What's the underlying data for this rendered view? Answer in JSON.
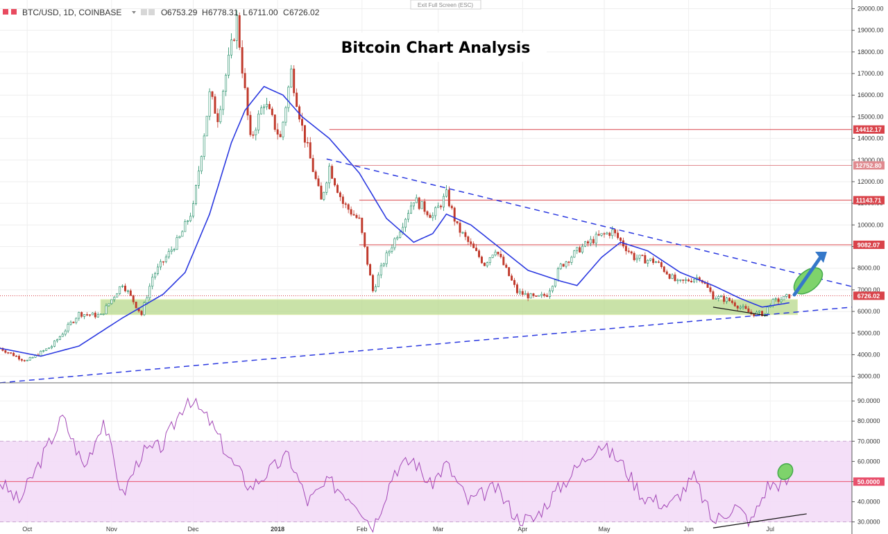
{
  "toolbar": {
    "symbol": "BTC/USD, 1D, COINBASE",
    "ohlc": [
      {
        "label": "O",
        "value": "6753.29"
      },
      {
        "label": "H",
        "value": "6778.31"
      },
      {
        "label": "L",
        "value": "6711.00"
      },
      {
        "label": "C",
        "value": "6726.02"
      }
    ],
    "exit_fullscreen": "Exit Full Screen (ESC)"
  },
  "chart_data": [
    {
      "type": "candlestick",
      "title": "Bitcoin Chart Analysis",
      "symbol": "BTC/USD, 1D, COINBASE",
      "ylim": [
        2700,
        20400
      ],
      "scale": "linear",
      "yticks": [
        3000,
        4000,
        5000,
        6000,
        7000,
        8000,
        9000,
        10000,
        11000,
        12000,
        13000,
        14000,
        15000,
        16000,
        17000,
        18000,
        19000,
        20000
      ],
      "ytick_labels": [
        "3000.00",
        "4000.00",
        "5000.00",
        "6000.00",
        "7000.00",
        "8000.00",
        "9000.00",
        "10000.00",
        "11000.00",
        "12000.00",
        "13000.00",
        "14000.00",
        "15000.00",
        "16000.00",
        "17000.00",
        "18000.00",
        "19000.00",
        "20000.00"
      ],
      "xticks": [
        "Oct",
        "Nov",
        "Dec",
        "2018",
        "Feb",
        "Mar",
        "Apr",
        "May",
        "Jun",
        "Jul"
      ],
      "xtick_dates": [
        "2017-10-01",
        "2017-11-01",
        "2017-12-01",
        "2018-01-01",
        "2018-02-01",
        "2018-03-01",
        "2018-04-01",
        "2018-05-01",
        "2018-06-01",
        "2018-07-01"
      ],
      "date_range": [
        "2017-09-21",
        "2018-07-31"
      ],
      "price_path": [
        [
          "2017-09-21",
          4300
        ],
        [
          "2017-09-29",
          3800
        ],
        [
          "2017-10-01",
          3720
        ],
        [
          "2017-10-10",
          4400
        ],
        [
          "2017-10-20",
          5900
        ],
        [
          "2017-10-28",
          5800
        ],
        [
          "2017-11-05",
          7300
        ],
        [
          "2017-11-12",
          5860
        ],
        [
          "2017-11-16",
          7600
        ],
        [
          "2017-11-26",
          9400
        ],
        [
          "2017-12-01",
          10800
        ],
        [
          "2017-12-07",
          16000
        ],
        [
          "2017-12-10",
          15000
        ],
        [
          "2017-12-17",
          19500
        ],
        [
          "2017-12-22",
          13900
        ],
        [
          "2017-12-27",
          15700
        ],
        [
          "2018-01-02",
          14000
        ],
        [
          "2018-01-06",
          17100
        ],
        [
          "2018-01-10",
          14500
        ],
        [
          "2018-01-17",
          11100
        ],
        [
          "2018-01-20",
          12700
        ],
        [
          "2018-01-25",
          11000
        ],
        [
          "2018-01-31",
          10200
        ],
        [
          "2018-02-05",
          6950
        ],
        [
          "2018-02-09",
          8300
        ],
        [
          "2018-02-16",
          10100
        ],
        [
          "2018-02-20",
          11200
        ],
        [
          "2018-02-27",
          10400
        ],
        [
          "2018-03-04",
          11400
        ],
        [
          "2018-03-08",
          9900
        ],
        [
          "2018-03-12",
          9200
        ],
        [
          "2018-03-18",
          8200
        ],
        [
          "2018-03-22",
          8900
        ],
        [
          "2018-03-30",
          6900
        ],
        [
          "2018-04-06",
          6600
        ],
        [
          "2018-04-10",
          6800
        ],
        [
          "2018-04-15",
          8100
        ],
        [
          "2018-04-22",
          8900
        ],
        [
          "2018-04-28",
          9400
        ],
        [
          "2018-05-04",
          9700
        ],
        [
          "2018-05-12",
          8500
        ],
        [
          "2018-05-20",
          8300
        ],
        [
          "2018-05-28",
          7300
        ],
        [
          "2018-06-05",
          7600
        ],
        [
          "2018-06-10",
          6700
        ],
        [
          "2018-06-16",
          6500
        ],
        [
          "2018-06-24",
          5900
        ],
        [
          "2018-06-29",
          5900
        ],
        [
          "2018-07-01",
          6400
        ],
        [
          "2018-07-06",
          6600
        ],
        [
          "2018-07-08",
          6726
        ]
      ],
      "moving_average_path": [
        [
          "2017-09-21",
          4300
        ],
        [
          "2017-10-06",
          3930
        ],
        [
          "2017-10-20",
          4400
        ],
        [
          "2017-11-05",
          5700
        ],
        [
          "2017-11-20",
          6800
        ],
        [
          "2017-11-28",
          7800
        ],
        [
          "2017-12-07",
          10500
        ],
        [
          "2017-12-15",
          13800
        ],
        [
          "2017-12-20",
          15300
        ],
        [
          "2017-12-27",
          16400
        ],
        [
          "2018-01-03",
          16000
        ],
        [
          "2018-01-10",
          15000
        ],
        [
          "2018-01-20",
          14000
        ],
        [
          "2018-01-31",
          12400
        ],
        [
          "2018-02-10",
          10300
        ],
        [
          "2018-02-20",
          9200
        ],
        [
          "2018-02-27",
          9600
        ],
        [
          "2018-03-04",
          10500
        ],
        [
          "2018-03-13",
          10000
        ],
        [
          "2018-03-23",
          9000
        ],
        [
          "2018-04-03",
          7900
        ],
        [
          "2018-04-15",
          7400
        ],
        [
          "2018-04-21",
          7200
        ],
        [
          "2018-04-30",
          8500
        ],
        [
          "2018-05-07",
          9200
        ],
        [
          "2018-05-17",
          8800
        ],
        [
          "2018-05-29",
          7800
        ],
        [
          "2018-06-10",
          7200
        ],
        [
          "2018-06-20",
          6600
        ],
        [
          "2018-06-28",
          6200
        ],
        [
          "2018-07-08",
          6400
        ]
      ],
      "horizontal_levels": [
        {
          "value": 14412.17,
          "label": "14412.17",
          "color": "#d9434a"
        },
        {
          "value": 12752.8,
          "label": "12752.80",
          "color": "#e08a8f"
        },
        {
          "value": 11143.71,
          "label": "11143.71",
          "color": "#d9434a"
        },
        {
          "value": 9082.07,
          "label": "9082.07",
          "color": "#d9434a"
        }
      ],
      "last_price": {
        "value": 6726.02,
        "label": "6726.02",
        "color": "#d9434a"
      },
      "support_zone": [
        5850,
        6550
      ],
      "trendlines": [
        {
          "style": "dashed",
          "color": "#2a38e0",
          "from": [
            "2018-01-19",
            13050
          ],
          "to": [
            "2018-07-31",
            7150
          ]
        },
        {
          "style": "dashed",
          "color": "#2a38e0",
          "from": [
            "2017-09-21",
            2700
          ],
          "to": [
            "2018-07-31",
            6200
          ]
        },
        {
          "style": "solid",
          "color": "#111111",
          "from": [
            "2018-06-10",
            6200
          ],
          "to": [
            "2018-06-30",
            5800
          ]
        }
      ],
      "annotation": "green ellipse with blue up-arrow pointing upward"
    },
    {
      "type": "line",
      "indicator": "RSI",
      "ylim": [
        24,
        99
      ],
      "yticks": [
        30,
        40,
        50,
        60,
        70,
        80,
        90
      ],
      "ytick_labels": [
        "30.0000",
        "40.0000",
        "50.0000",
        "60.0000",
        "70.0000",
        "80.0000",
        "90.0000"
      ],
      "band": [
        30,
        70
      ],
      "midline": {
        "value": 50,
        "label": "50.0000",
        "color": "#e8506c"
      },
      "rsi_path": [
        [
          "2017-09-21",
          50
        ],
        [
          "2017-09-28",
          40
        ],
        [
          "2017-10-05",
          58
        ],
        [
          "2017-10-14",
          82
        ],
        [
          "2017-10-22",
          57
        ],
        [
          "2017-10-29",
          81
        ],
        [
          "2017-11-05",
          43
        ],
        [
          "2017-11-12",
          64
        ],
        [
          "2017-11-20",
          68
        ],
        [
          "2017-11-29",
          92
        ],
        [
          "2017-12-07",
          80
        ],
        [
          "2017-12-15",
          60
        ],
        [
          "2017-12-22",
          47
        ],
        [
          "2017-12-27",
          53
        ],
        [
          "2018-01-05",
          63
        ],
        [
          "2018-01-12",
          40
        ],
        [
          "2018-01-20",
          50
        ],
        [
          "2018-01-30",
          40
        ],
        [
          "2018-02-05",
          27
        ],
        [
          "2018-02-13",
          56
        ],
        [
          "2018-02-20",
          61
        ],
        [
          "2018-02-26",
          48
        ],
        [
          "2018-03-04",
          59
        ],
        [
          "2018-03-12",
          40
        ],
        [
          "2018-03-22",
          47
        ],
        [
          "2018-03-30",
          32
        ],
        [
          "2018-04-05",
          31
        ],
        [
          "2018-04-12",
          43
        ],
        [
          "2018-04-21",
          57
        ],
        [
          "2018-04-29",
          69
        ],
        [
          "2018-05-07",
          60
        ],
        [
          "2018-05-15",
          43
        ],
        [
          "2018-05-25",
          38
        ],
        [
          "2018-06-03",
          52
        ],
        [
          "2018-06-10",
          30
        ],
        [
          "2018-06-18",
          38
        ],
        [
          "2018-06-24",
          30
        ],
        [
          "2018-06-30",
          48
        ],
        [
          "2018-07-08",
          50
        ]
      ],
      "trendlines": [
        {
          "style": "solid",
          "color": "#111111",
          "from": [
            "2018-06-10",
            27
          ],
          "to": [
            "2018-07-08",
            34
          ]
        }
      ],
      "annotation": "green ellipse around latest RSI value"
    }
  ]
}
